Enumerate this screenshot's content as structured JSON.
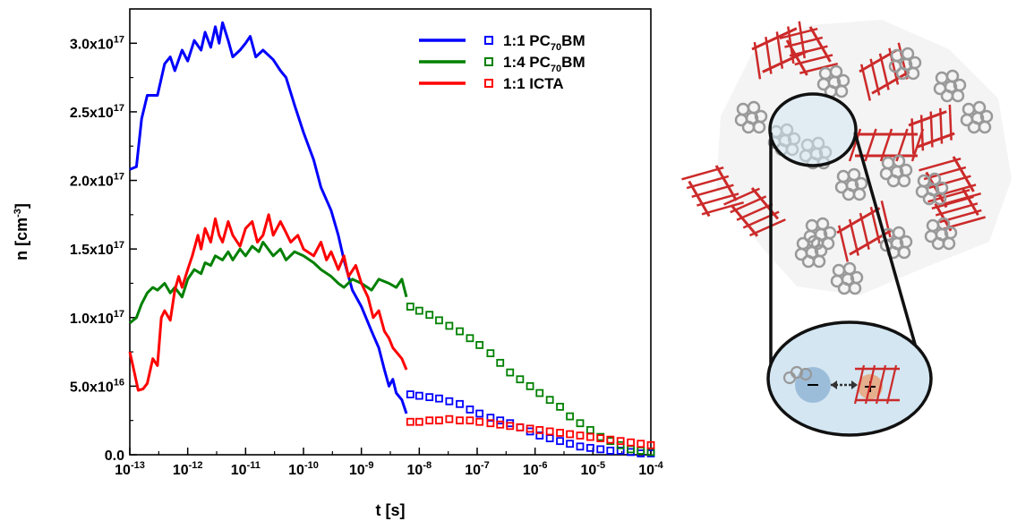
{
  "chart_data": {
    "type": "line",
    "xlabel": "t [s]",
    "ylabel": "n [cm-3]",
    "xscale": "log",
    "xlim": [
      1e-13,
      0.0001
    ],
    "ylim": [
      0,
      3.25e+17
    ],
    "x_ticks": [
      {
        "base": "10",
        "exp": "-13",
        "value": 1e-13
      },
      {
        "base": "10",
        "exp": "-12",
        "value": 1e-12
      },
      {
        "base": "10",
        "exp": "-11",
        "value": 1e-11
      },
      {
        "base": "10",
        "exp": "-10",
        "value": 1e-10
      },
      {
        "base": "10",
        "exp": "-9",
        "value": 1e-09
      },
      {
        "base": "10",
        "exp": "-8",
        "value": 1e-08
      },
      {
        "base": "10",
        "exp": "-7",
        "value": 1e-07
      },
      {
        "base": "10",
        "exp": "-6",
        "value": 1e-06
      },
      {
        "base": "10",
        "exp": "-5",
        "value": 1e-05
      },
      {
        "base": "10",
        "exp": "-4",
        "value": 0.0001
      }
    ],
    "y_ticks": [
      {
        "mant": "0.0",
        "exp": "",
        "value": 0
      },
      {
        "mant": "5.0x10",
        "exp": "16",
        "value": 5e+16
      },
      {
        "mant": "1.0x10",
        "exp": "17",
        "value": 1e+17
      },
      {
        "mant": "1.5x10",
        "exp": "17",
        "value": 1.5e+17
      },
      {
        "mant": "2.0x10",
        "exp": "17",
        "value": 2e+17
      },
      {
        "mant": "2.5x10",
        "exp": "17",
        "value": 2.5e+17
      },
      {
        "mant": "3.0x10",
        "exp": "17",
        "value": 3e+17
      }
    ],
    "legend_position": "top-right",
    "legend": [
      {
        "pre": "1:1 PC",
        "sub": "70",
        "post": "BM",
        "color": "#0000ff"
      },
      {
        "pre": "1:4 PC",
        "sub": "70",
        "post": "BM",
        "color": "#008000"
      },
      {
        "pre": "1:1 ICTA",
        "sub": "",
        "post": "",
        "color": "#ff0000"
      }
    ],
    "series": [
      {
        "color": "#0000ff",
        "line": [
          [
            1e-13,
            2.08e+17
          ],
          [
            1.3e-13,
            2.1e+17
          ],
          [
            1.6e-13,
            2.45e+17
          ],
          [
            2e-13,
            2.62e+17
          ],
          [
            3e-13,
            2.62e+17
          ],
          [
            4e-13,
            2.85e+17
          ],
          [
            5e-13,
            2.9e+17
          ],
          [
            6e-13,
            2.8e+17
          ],
          [
            8e-13,
            2.95e+17
          ],
          [
            1e-12,
            2.87e+17
          ],
          [
            1.3e-12,
            3.02e+17
          ],
          [
            1.7e-12,
            2.95e+17
          ],
          [
            2e-12,
            3.08e+17
          ],
          [
            2.5e-12,
            2.97e+17
          ],
          [
            3e-12,
            3.12e+17
          ],
          [
            3.5e-12,
            3e+17
          ],
          [
            4e-12,
            3.15e+17
          ],
          [
            5e-12,
            3.02e+17
          ],
          [
            6e-12,
            2.9e+17
          ],
          [
            8e-12,
            2.95e+17
          ],
          [
            1e-11,
            3e+17
          ],
          [
            1.2e-11,
            3.05e+17
          ],
          [
            1.5e-11,
            2.9e+17
          ],
          [
            2e-11,
            2.95e+17
          ],
          [
            3e-11,
            2.88e+17
          ],
          [
            4e-11,
            2.8e+17
          ],
          [
            5e-11,
            2.75e+17
          ],
          [
            7e-11,
            2.55e+17
          ],
          [
            1e-10,
            2.35e+17
          ],
          [
            1.5e-10,
            2.15e+17
          ],
          [
            2e-10,
            1.95e+17
          ],
          [
            3e-10,
            1.78e+17
          ],
          [
            4e-10,
            1.6e+17
          ],
          [
            5e-10,
            1.42e+17
          ],
          [
            7e-10,
            1.2e+17
          ],
          [
            1e-09,
            1.08e+17
          ],
          [
            1.5e-09,
            9e+16
          ],
          [
            2e-09,
            7.8e+16
          ],
          [
            2.5e-09,
            6.2e+16
          ],
          [
            3e-09,
            5e+16
          ],
          [
            3.5e-09,
            5.5e+16
          ],
          [
            4e-09,
            4.5e+16
          ],
          [
            5e-09,
            4e+16
          ],
          [
            6e-09,
            3e+16
          ]
        ],
        "markers": [
          [
            7e-09,
            4.4e+16
          ],
          [
            1e-08,
            4.3e+16
          ],
          [
            1.5e-08,
            4.2e+16
          ],
          [
            2.2e-08,
            4.1e+16
          ],
          [
            3.3e-08,
            3.9e+16
          ],
          [
            5e-08,
            3.7e+16
          ],
          [
            7.5e-08,
            3.3e+16
          ],
          [
            1.1e-07,
            3e+16
          ],
          [
            1.7e-07,
            2.7e+16
          ],
          [
            2.5e-07,
            2.5e+16
          ],
          [
            3.7e-07,
            2.3e+16
          ],
          [
            5.5e-07,
            2e+16
          ],
          [
            8.2e-07,
            1.7e+16
          ],
          [
            1.2e-06,
            1.4e+16
          ],
          [
            1.8e-06,
            1.2e+16
          ],
          [
            2.7e-06,
            1e+16
          ],
          [
            4e-06,
            8000000000000000.0
          ],
          [
            6e-06,
            6000000000000000.0
          ],
          [
            9e-06,
            5000000000000000.0
          ],
          [
            1.35e-05,
            4000000000000000.0
          ],
          [
            2e-05,
            3000000000000000.0
          ],
          [
            3e-05,
            3000000000000000.0
          ],
          [
            4.5e-05,
            2000000000000000.0
          ],
          [
            6.7e-05,
            1000000000000000.0
          ],
          [
            0.0001,
            1000000000000000.0
          ]
        ]
      },
      {
        "color": "#008000",
        "line": [
          [
            1e-13,
            9.6e+16
          ],
          [
            1.3e-13,
            1e+17
          ],
          [
            1.6e-13,
            1.1e+17
          ],
          [
            2e-13,
            1.18e+17
          ],
          [
            2.5e-13,
            1.22e+17
          ],
          [
            3e-13,
            1.2e+17
          ],
          [
            4e-13,
            1.25e+17
          ],
          [
            5e-13,
            1.18e+17
          ],
          [
            6e-13,
            1.22e+17
          ],
          [
            8e-13,
            1.15e+17
          ],
          [
            1e-12,
            1.28e+17
          ],
          [
            1.3e-12,
            1.35e+17
          ],
          [
            1.7e-12,
            1.32e+17
          ],
          [
            2e-12,
            1.4e+17
          ],
          [
            2.5e-12,
            1.38e+17
          ],
          [
            3e-12,
            1.45e+17
          ],
          [
            4e-12,
            1.42e+17
          ],
          [
            5e-12,
            1.48e+17
          ],
          [
            6e-12,
            1.42e+17
          ],
          [
            8e-12,
            1.5e+17
          ],
          [
            1e-11,
            1.45e+17
          ],
          [
            1.3e-11,
            1.52e+17
          ],
          [
            1.7e-11,
            1.48e+17
          ],
          [
            2e-11,
            1.55e+17
          ],
          [
            3e-11,
            1.45e+17
          ],
          [
            4e-11,
            1.5e+17
          ],
          [
            5e-11,
            1.42e+17
          ],
          [
            7e-11,
            1.48e+17
          ],
          [
            1e-10,
            1.45e+17
          ],
          [
            1.5e-10,
            1.4e+17
          ],
          [
            2e-10,
            1.35e+17
          ],
          [
            3e-10,
            1.3e+17
          ],
          [
            4e-10,
            1.25e+17
          ],
          [
            5e-10,
            1.22e+17
          ],
          [
            7e-10,
            1.28e+17
          ],
          [
            1e-09,
            1.25e+17
          ],
          [
            1.5e-09,
            1.2e+17
          ],
          [
            2e-09,
            1.28e+17
          ],
          [
            3e-09,
            1.25e+17
          ],
          [
            4e-09,
            1.22e+17
          ],
          [
            5e-09,
            1.28e+17
          ],
          [
            6e-09,
            1.15e+17
          ]
        ],
        "markers": [
          [
            7e-09,
            1.08e+17
          ],
          [
            1e-08,
            1.05e+17
          ],
          [
            1.5e-08,
            1.02e+17
          ],
          [
            2.2e-08,
            9.8e+16
          ],
          [
            3.3e-08,
            9.4e+16
          ],
          [
            5e-08,
            9e+16
          ],
          [
            7.5e-08,
            8.5e+16
          ],
          [
            1.1e-07,
            8e+16
          ],
          [
            1.7e-07,
            7.4e+16
          ],
          [
            2.5e-07,
            6.7e+16
          ],
          [
            3.7e-07,
            6e+16
          ],
          [
            5.5e-07,
            5.5e+16
          ],
          [
            8.2e-07,
            5e+16
          ],
          [
            1.2e-06,
            4.5e+16
          ],
          [
            1.8e-06,
            4e+16
          ],
          [
            2.7e-06,
            3.5e+16
          ],
          [
            4e-06,
            2.8e+16
          ],
          [
            6e-06,
            2.3e+16
          ],
          [
            9e-06,
            1.8e+16
          ],
          [
            1.35e-05,
            1.3e+16
          ],
          [
            2e-05,
            1e+16
          ],
          [
            3e-05,
            7000000000000000.0
          ],
          [
            4.5e-05,
            4000000000000000.0
          ],
          [
            6.7e-05,
            3000000000000000.0
          ],
          [
            0.0001,
            2000000000000000.0
          ]
        ]
      },
      {
        "color": "#ff0000",
        "line": [
          [
            1e-13,
            7.5e+16
          ],
          [
            1.2e-13,
            6e+16
          ],
          [
            1.4e-13,
            4.7e+16
          ],
          [
            1.7e-13,
            4.8e+16
          ],
          [
            2e-13,
            5.2e+16
          ],
          [
            2.5e-13,
            7e+16
          ],
          [
            3e-13,
            6.5e+16
          ],
          [
            3.5e-13,
            1e+17
          ],
          [
            4e-13,
            1.05e+17
          ],
          [
            5e-13,
            9.8e+16
          ],
          [
            6e-13,
            1.2e+17
          ],
          [
            7e-13,
            1.3e+17
          ],
          [
            8e-13,
            1.22e+17
          ],
          [
            1e-12,
            1.35e+17
          ],
          [
            1.2e-12,
            1.45e+17
          ],
          [
            1.5e-12,
            1.6e+17
          ],
          [
            1.7e-12,
            1.5e+17
          ],
          [
            2e-12,
            1.65e+17
          ],
          [
            2.5e-12,
            1.55e+17
          ],
          [
            3e-12,
            1.72e+17
          ],
          [
            3.5e-12,
            1.6e+17
          ],
          [
            4e-12,
            1.55e+17
          ],
          [
            5e-12,
            1.7e+17
          ],
          [
            6e-12,
            1.6e+17
          ],
          [
            8e-12,
            1.52e+17
          ],
          [
            1e-11,
            1.65e+17
          ],
          [
            1.3e-11,
            1.7e+17
          ],
          [
            1.6e-11,
            1.55e+17
          ],
          [
            2e-11,
            1.6e+17
          ],
          [
            2.5e-11,
            1.75e+17
          ],
          [
            3e-11,
            1.6e+17
          ],
          [
            4e-11,
            1.7e+17
          ],
          [
            5e-11,
            1.62e+17
          ],
          [
            6e-11,
            1.55e+17
          ],
          [
            8e-11,
            1.6e+17
          ],
          [
            1e-10,
            1.5e+17
          ],
          [
            1.5e-10,
            1.45e+17
          ],
          [
            2e-10,
            1.55e+17
          ],
          [
            2.5e-10,
            1.42e+17
          ],
          [
            3e-10,
            1.48e+17
          ],
          [
            4e-10,
            1.35e+17
          ],
          [
            5e-10,
            1.45e+17
          ],
          [
            6e-10,
            1.3e+17
          ],
          [
            8e-10,
            1.38e+17
          ],
          [
            1e-09,
            1.25e+17
          ],
          [
            1.3e-09,
            1.15e+17
          ],
          [
            1.6e-09,
            1e+17
          ],
          [
            2e-09,
            1.05e+17
          ],
          [
            2.5e-09,
            9e+16
          ],
          [
            3e-09,
            8.5e+16
          ],
          [
            3.5e-09,
            7.8e+16
          ],
          [
            4e-09,
            7.5e+16
          ],
          [
            5e-09,
            7e+16
          ],
          [
            6e-09,
            6.2e+16
          ]
        ],
        "markers": [
          [
            7e-09,
            2.4e+16
          ],
          [
            1e-08,
            2.4e+16
          ],
          [
            1.5e-08,
            2.5e+16
          ],
          [
            2.2e-08,
            2.5e+16
          ],
          [
            3.3e-08,
            2.6e+16
          ],
          [
            5e-08,
            2.5e+16
          ],
          [
            7.5e-08,
            2.5e+16
          ],
          [
            1.1e-07,
            2.4e+16
          ],
          [
            1.7e-07,
            2.3e+16
          ],
          [
            2.5e-07,
            2.2e+16
          ],
          [
            3.7e-07,
            2.1e+16
          ],
          [
            5.5e-07,
            2e+16
          ],
          [
            8.2e-07,
            1.9e+16
          ],
          [
            1.2e-06,
            1.8e+16
          ],
          [
            1.8e-06,
            1.7e+16
          ],
          [
            2.7e-06,
            1.6e+16
          ],
          [
            4e-06,
            1.5e+16
          ],
          [
            6e-06,
            1.4e+16
          ],
          [
            9e-06,
            1.3e+16
          ],
          [
            1.35e-05,
            1.2e+16
          ],
          [
            2e-05,
            1.1e+16
          ],
          [
            3e-05,
            1e+16
          ],
          [
            4.5e-05,
            9000000000000000.0
          ],
          [
            6.7e-05,
            8000000000000000.0
          ],
          [
            0.0001,
            7000000000000000.0
          ]
        ]
      }
    ]
  },
  "schematic": {
    "fragment_color": "#cc2a2a",
    "ring_color": "#999999",
    "lens_fill": "#d3e6f2"
  }
}
